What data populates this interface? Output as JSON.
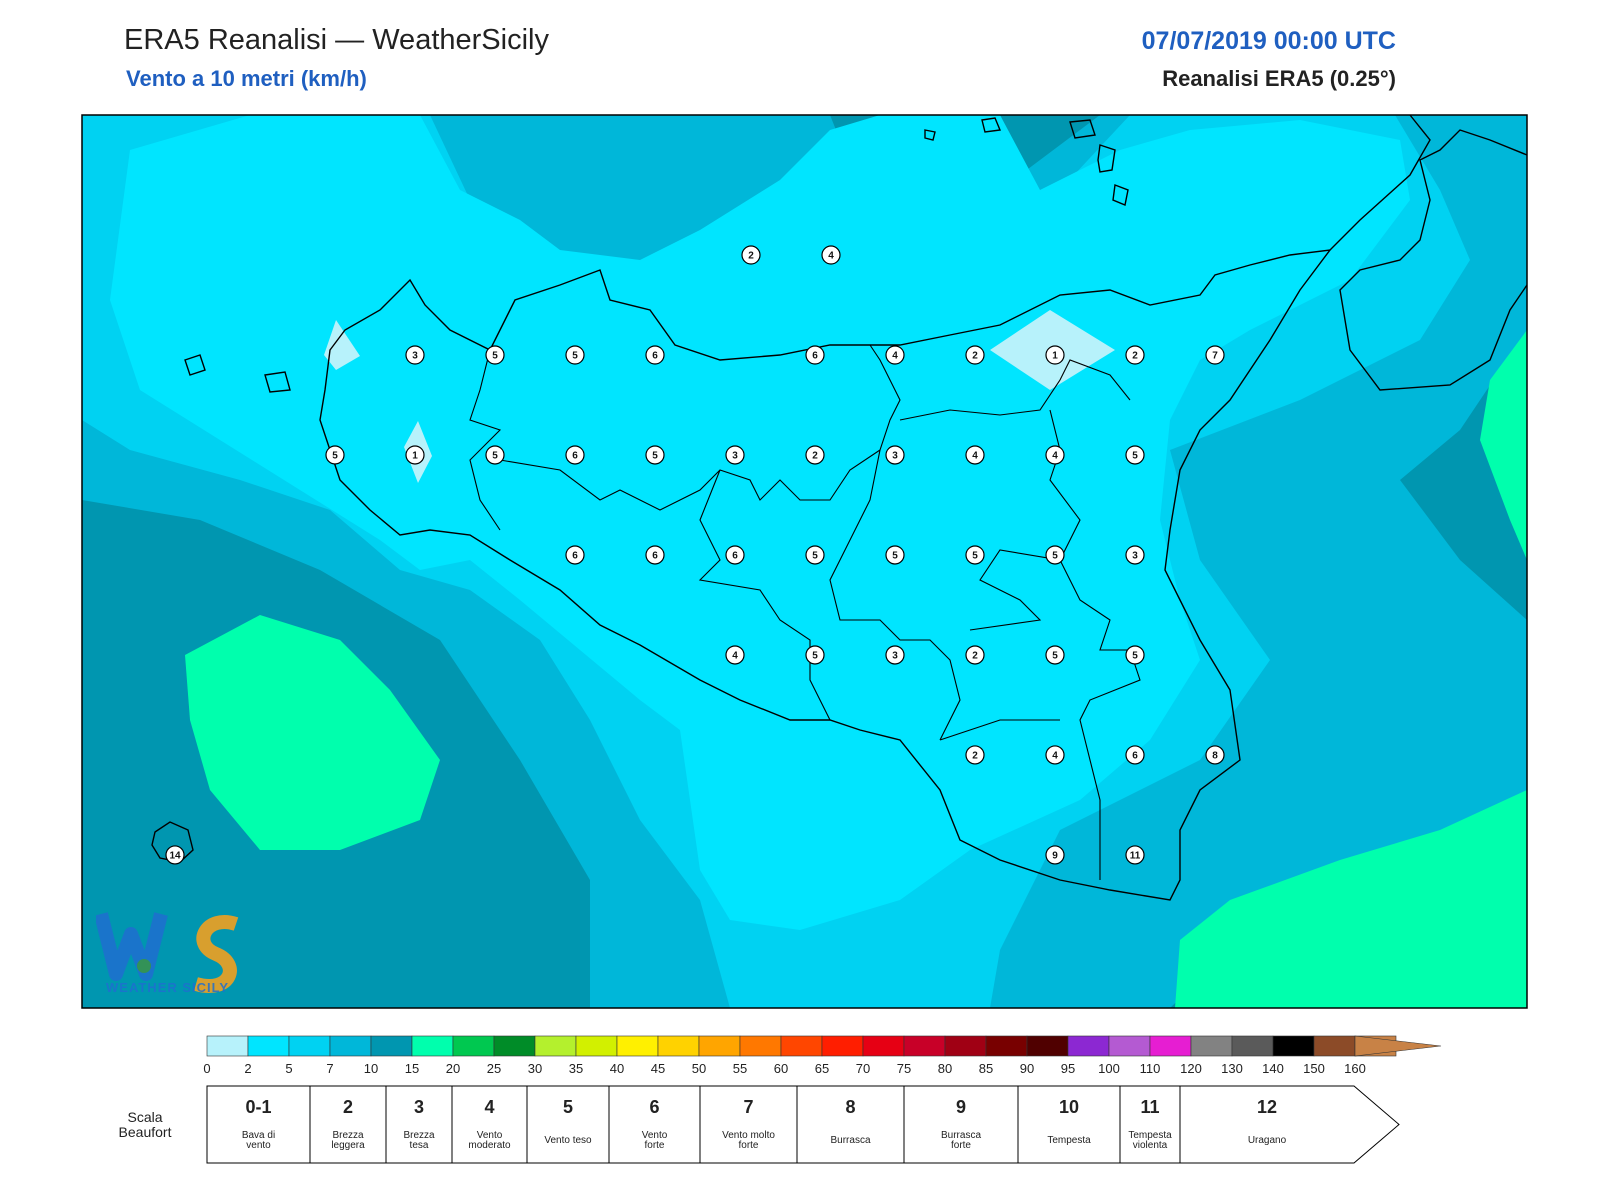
{
  "header": {
    "title": "ERA5 Reanalisi — WeatherSicily",
    "subtitle": "Vento a 10 metri (km/h)",
    "datetime": "07/07/2019 00:00 UTC",
    "source": "Reanalisi ERA5 (0.25°)"
  },
  "colors": {
    "band_0_2": "#b7f2fb",
    "band_2_5": "#00e5ff",
    "band_5_7": "#00d2f2",
    "band_7_10": "#00b7d9",
    "band_10_15": "#0096b0",
    "band_15_20": "#00ffad",
    "coast": "#000000",
    "title_blue": "#1f5fc0"
  },
  "colorbar": {
    "ticks": [
      "0",
      "2",
      "5",
      "7",
      "10",
      "15",
      "20",
      "25",
      "30",
      "35",
      "40",
      "45",
      "50",
      "55",
      "60",
      "65",
      "70",
      "75",
      "80",
      "85",
      "90",
      "95",
      "100",
      "110",
      "120",
      "130",
      "140",
      "150",
      "160"
    ],
    "colors": [
      "#b7f2fb",
      "#00e5ff",
      "#00d2f2",
      "#00b7d9",
      "#0096b0",
      "#00ffad",
      "#00c850",
      "#008c28",
      "#b4f02d",
      "#d2f000",
      "#fff000",
      "#ffd200",
      "#ffa500",
      "#ff7800",
      "#ff4600",
      "#ff1e00",
      "#e60014",
      "#c80028",
      "#a00014",
      "#780000",
      "#500000",
      "#8c28d2",
      "#b45ad2",
      "#e61ed2",
      "#828282",
      "#5a5a5a",
      "#000000",
      "#8c4b28",
      "#c88246"
    ]
  },
  "beaufort": {
    "title": "Scala Beaufort",
    "cells": [
      {
        "num": "0-1",
        "desc": [
          "Bava di",
          "vento"
        ]
      },
      {
        "num": "2",
        "desc": [
          "Brezza",
          "leggera"
        ]
      },
      {
        "num": "3",
        "desc": [
          "Brezza",
          "tesa"
        ]
      },
      {
        "num": "4",
        "desc": [
          "Vento",
          "moderato"
        ]
      },
      {
        "num": "5",
        "desc": [
          "Vento teso"
        ]
      },
      {
        "num": "6",
        "desc": [
          "Vento",
          "forte"
        ]
      },
      {
        "num": "7",
        "desc": [
          "Vento molto",
          "forte"
        ]
      },
      {
        "num": "8",
        "desc": [
          "Burrasca"
        ]
      },
      {
        "num": "9",
        "desc": [
          "Burrasca",
          "forte"
        ]
      },
      {
        "num": "10",
        "desc": [
          "Tempesta"
        ]
      },
      {
        "num": "11",
        "desc": [
          "Tempesta",
          "violenta"
        ]
      },
      {
        "num": "12",
        "desc": [
          "Uragano"
        ]
      }
    ]
  },
  "stations": [
    {
      "lon": 14.6,
      "lat": 38.4,
      "v": "2"
    },
    {
      "lon": 15.1,
      "lat": 38.4,
      "v": "4"
    },
    {
      "lon": 12.5,
      "lat": 38.1,
      "v": "3"
    },
    {
      "lon": 13.0,
      "lat": 38.1,
      "v": "5"
    },
    {
      "lon": 13.5,
      "lat": 38.1,
      "v": "5"
    },
    {
      "lon": 14.0,
      "lat": 38.1,
      "v": "6"
    },
    {
      "lon": 15.0,
      "lat": 38.1,
      "v": "6"
    },
    {
      "lon": 15.5,
      "lat": 38.1,
      "v": "4"
    },
    {
      "lon": 16.0,
      "lat": 38.1,
      "v": "2"
    },
    {
      "lon": 16.5,
      "lat": 38.1,
      "v": "1"
    },
    {
      "lon": 17.0,
      "lat": 38.1,
      "v": "2"
    },
    {
      "lon": 17.5,
      "lat": 38.1,
      "v": "7"
    },
    {
      "lon": 12.0,
      "lat": 37.8,
      "v": "5"
    },
    {
      "lon": 12.5,
      "lat": 37.8,
      "v": "1"
    },
    {
      "lon": 13.0,
      "lat": 37.8,
      "v": "5"
    },
    {
      "lon": 13.5,
      "lat": 37.8,
      "v": "6"
    },
    {
      "lon": 14.0,
      "lat": 37.8,
      "v": "5"
    },
    {
      "lon": 14.5,
      "lat": 37.8,
      "v": "3"
    },
    {
      "lon": 15.0,
      "lat": 37.8,
      "v": "2"
    },
    {
      "lon": 15.5,
      "lat": 37.8,
      "v": "3"
    },
    {
      "lon": 16.0,
      "lat": 37.8,
      "v": "4"
    },
    {
      "lon": 16.5,
      "lat": 37.8,
      "v": "4"
    },
    {
      "lon": 17.0,
      "lat": 37.8,
      "v": "5"
    },
    {
      "lon": 13.5,
      "lat": 37.5,
      "v": "6"
    },
    {
      "lon": 14.0,
      "lat": 37.5,
      "v": "6"
    },
    {
      "lon": 14.5,
      "lat": 37.5,
      "v": "6"
    },
    {
      "lon": 15.0,
      "lat": 37.5,
      "v": "5"
    },
    {
      "lon": 15.5,
      "lat": 37.5,
      "v": "5"
    },
    {
      "lon": 16.0,
      "lat": 37.5,
      "v": "5"
    },
    {
      "lon": 16.5,
      "lat": 37.5,
      "v": "5"
    },
    {
      "lon": 17.0,
      "lat": 37.5,
      "v": "3"
    },
    {
      "lon": 14.5,
      "lat": 37.2,
      "v": "4"
    },
    {
      "lon": 15.0,
      "lat": 37.2,
      "v": "5"
    },
    {
      "lon": 15.5,
      "lat": 37.2,
      "v": "3"
    },
    {
      "lon": 16.0,
      "lat": 37.2,
      "v": "2"
    },
    {
      "lon": 16.5,
      "lat": 37.2,
      "v": "5"
    },
    {
      "lon": 17.0,
      "lat": 37.2,
      "v": "5"
    },
    {
      "lon": 16.0,
      "lat": 36.9,
      "v": "2"
    },
    {
      "lon": 16.5,
      "lat": 36.9,
      "v": "4"
    },
    {
      "lon": 17.0,
      "lat": 36.9,
      "v": "6"
    },
    {
      "lon": 17.5,
      "lat": 36.9,
      "v": "8"
    },
    {
      "lon": 11.0,
      "lat": 36.6,
      "v": "14"
    },
    {
      "lon": 16.5,
      "lat": 36.6,
      "v": "9"
    },
    {
      "lon": 17.0,
      "lat": 36.6,
      "v": "11"
    }
  ],
  "logo": {
    "text": "WEATHER SICILY"
  }
}
